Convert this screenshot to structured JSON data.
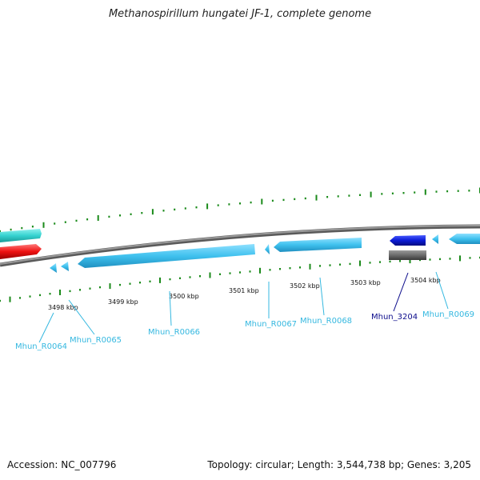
{
  "title": "Methanospirillum hungatei JF-1, complete genome",
  "accession": "Accession: NC_007796",
  "summary": "Topology: circular; Length: 3,544,738 bp; Genes: 3,205",
  "colors": {
    "backbone": "#7f7f7f",
    "tick": "#1a8a1a",
    "rna_gene": "#3fc1ee",
    "rna_label": "#35b8e0",
    "cds_blue": "#0b1bd6",
    "cds_label": "#0d0d8c",
    "cyan_feature": "#35d3d0",
    "red_feature": "#ee1111",
    "grey_feature": "#6b6b6b"
  },
  "kbp_labels": [
    "3498 kbp",
    "3499 kbp",
    "3500 kbp",
    "3501 kbp",
    "3502 kbp",
    "3503 kbp",
    "3504 kbp"
  ],
  "genes": [
    {
      "id": "Mhun_R0064",
      "type": "rna"
    },
    {
      "id": "Mhun_R0065",
      "type": "rna"
    },
    {
      "id": "Mhun_R0066",
      "type": "rna"
    },
    {
      "id": "Mhun_R0067",
      "type": "rna"
    },
    {
      "id": "Mhun_R0068",
      "type": "rna"
    },
    {
      "id": "Mhun_3204",
      "type": "cds"
    },
    {
      "id": "Mhun_R0069",
      "type": "rna"
    }
  ]
}
